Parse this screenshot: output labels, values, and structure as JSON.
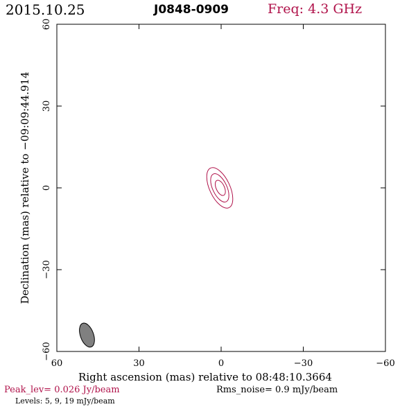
{
  "header": {
    "date": "2015.10.25",
    "source": "J0848-0909",
    "freq": "Freq: 4.3 GHz"
  },
  "footer": {
    "peak": "Peak_lev=  0.026 Jy/beam",
    "rms": "Rms_noise=   0.9 mJy/beam",
    "levels": "Levels:   5,   9,  19 mJy/beam"
  },
  "colors": {
    "contour": "#b0124a",
    "axis": "#000000",
    "beam_fill": "#808080"
  },
  "chart_data": {
    "type": "contour",
    "xlabel": "Right ascension (mas) relative to 08:48:10.3664",
    "ylabel": "Declination (mas) relative to −09:09:44.914",
    "xlim": [
      60,
      -60
    ],
    "ylim": [
      -60,
      60
    ],
    "xticks": [
      60,
      30,
      0,
      -30,
      -60
    ],
    "yticks": [
      -60,
      -30,
      0,
      30,
      60
    ],
    "xtick_labels": [
      "60",
      "30",
      "0",
      "−30",
      "−60"
    ],
    "ytick_labels": [
      "−60",
      "−30",
      "0",
      "30",
      "60"
    ],
    "contour_levels_mJy": [
      5,
      9,
      19
    ],
    "contours": [
      {
        "level": 5,
        "center": [
          0.5,
          0
        ],
        "semi_major": 8.0,
        "semi_minor": 3.7,
        "pa_deg": 25
      },
      {
        "level": 9,
        "center": [
          0.5,
          0
        ],
        "semi_major": 5.6,
        "semi_minor": 2.6,
        "pa_deg": 25
      },
      {
        "level": 19,
        "center": [
          0.3,
          0
        ],
        "semi_major": 3.0,
        "semi_minor": 1.5,
        "pa_deg": 25
      }
    ],
    "beam": {
      "center": [
        49,
        -54
      ],
      "semi_major": 4.6,
      "semi_minor": 2.4,
      "pa_deg": 20
    }
  }
}
